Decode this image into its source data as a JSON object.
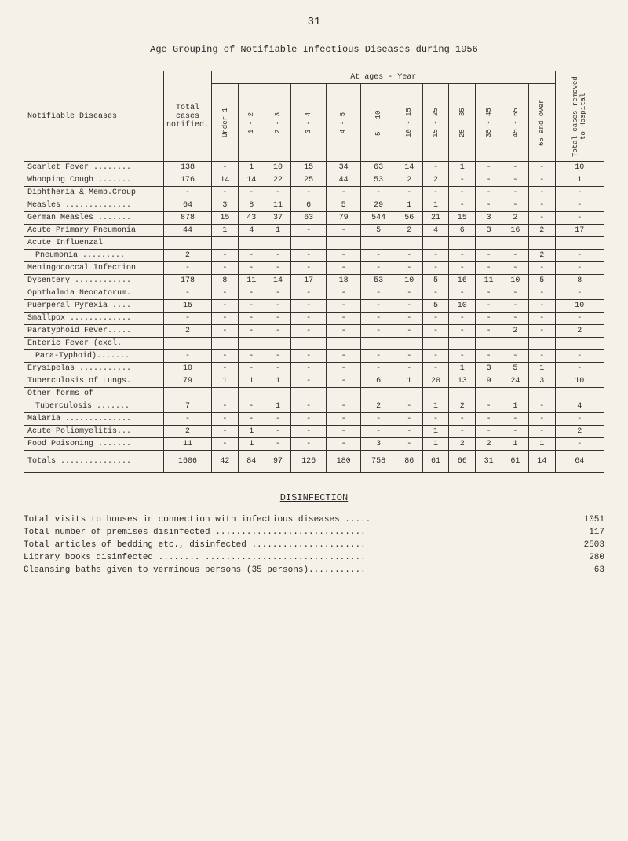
{
  "page_number": "31",
  "table_title": "Age Grouping of Notifiable Infectious Diseases during 1956",
  "headers": {
    "col_disease": "Notifiable Diseases",
    "col_total_cases": "Total cases notified.",
    "col_ages_span": "At ages - Year",
    "col_total_removed": "Total cases removed to Hospital",
    "age_cols": [
      "Under 1",
      "1 - 2",
      "2 - 3",
      "3 - 4",
      "4 - 5",
      "5 - 10",
      "10 - 15",
      "15 - 25",
      "25 - 35",
      "35 - 45",
      "45 - 65",
      "65 and over"
    ]
  },
  "rows": [
    {
      "name": "Scarlet Fever ........",
      "vals": [
        "138",
        "-",
        "1",
        "10",
        "15",
        "34",
        "63",
        "14",
        "-",
        "1",
        "-",
        "-",
        "-",
        "10"
      ]
    },
    {
      "name": "Whooping Cough .......",
      "vals": [
        "176",
        "14",
        "14",
        "22",
        "25",
        "44",
        "53",
        "2",
        "2",
        "-",
        "-",
        "-",
        "-",
        "1"
      ]
    },
    {
      "name": "Diphtheria & Memb.Croup",
      "vals": [
        "-",
        "-",
        "-",
        "-",
        "-",
        "-",
        "-",
        "-",
        "-",
        "-",
        "-",
        "-",
        "-",
        "-"
      ]
    },
    {
      "name": "Measles ..............",
      "vals": [
        "64",
        "3",
        "8",
        "11",
        "6",
        "5",
        "29",
        "1",
        "1",
        "-",
        "-",
        "-",
        "-",
        "-"
      ]
    },
    {
      "name": "German Measles .......",
      "vals": [
        "878",
        "15",
        "43",
        "37",
        "63",
        "79",
        "544",
        "56",
        "21",
        "15",
        "3",
        "2",
        "-",
        "-"
      ]
    },
    {
      "name": "Acute Primary Pneumonia",
      "vals": [
        "44",
        "1",
        "4",
        "1",
        "-",
        "-",
        "5",
        "2",
        "4",
        "6",
        "3",
        "16",
        "2",
        "17"
      ]
    },
    {
      "name": "Acute Influenzal",
      "vals": [
        "",
        "",
        "",
        "",
        "",
        "",
        "",
        "",
        "",
        "",
        "",
        "",
        "",
        ""
      ]
    },
    {
      "name": "Pneumonia .........",
      "indent": true,
      "vals": [
        "2",
        "-",
        "-",
        "-",
        "-",
        "-",
        "-",
        "-",
        "-",
        "-",
        "-",
        "-",
        "2",
        "-"
      ]
    },
    {
      "name": "Meningococcal Infection",
      "vals": [
        "-",
        "-",
        "-",
        "-",
        "-",
        "-",
        "-",
        "-",
        "-",
        "-",
        "-",
        "-",
        "-",
        "-"
      ]
    },
    {
      "name": "Dysentery ............",
      "vals": [
        "178",
        "8",
        "11",
        "14",
        "17",
        "18",
        "53",
        "10",
        "5",
        "16",
        "11",
        "10",
        "5",
        "8"
      ]
    },
    {
      "name": "Ophthalmia Neonatorum.",
      "vals": [
        "-",
        "-",
        "-",
        "-",
        "-",
        "-",
        "-",
        "-",
        "-",
        "-",
        "-",
        "-",
        "-",
        "-"
      ]
    },
    {
      "name": "Puerperal Pyrexia ....",
      "vals": [
        "15",
        "-",
        "-",
        "-",
        "-",
        "-",
        "-",
        "-",
        "5",
        "10",
        "-",
        "-",
        "-",
        "10"
      ]
    },
    {
      "name": "Smallpox .............",
      "vals": [
        "-",
        "-",
        "-",
        "-",
        "-",
        "-",
        "-",
        "-",
        "-",
        "-",
        "-",
        "-",
        "-",
        "-"
      ]
    },
    {
      "name": "Paratyphoid Fever.....",
      "vals": [
        "2",
        "-",
        "-",
        "-",
        "-",
        "-",
        "-",
        "-",
        "-",
        "-",
        "-",
        "2",
        "-",
        "2"
      ]
    },
    {
      "name": "Enteric Fever (excl.",
      "vals": [
        "",
        "",
        "",
        "",
        "",
        "",
        "",
        "",
        "",
        "",
        "",
        "",
        "",
        ""
      ]
    },
    {
      "name": "Para-Typhoid).......",
      "indent": true,
      "vals": [
        "-",
        "-",
        "-",
        "-",
        "-",
        "-",
        "-",
        "-",
        "-",
        "-",
        "-",
        "-",
        "-",
        "-"
      ]
    },
    {
      "name": "Erysipelas ...........",
      "vals": [
        "10",
        "-",
        "-",
        "-",
        "-",
        "-",
        "-",
        "-",
        "-",
        "1",
        "3",
        "5",
        "1",
        "-"
      ]
    },
    {
      "name": "Tuberculosis of Lungs.",
      "vals": [
        "79",
        "1",
        "1",
        "1",
        "-",
        "-",
        "6",
        "1",
        "20",
        "13",
        "9",
        "24",
        "3",
        "10"
      ]
    },
    {
      "name": "Other forms of",
      "vals": [
        "",
        "",
        "",
        "",
        "",
        "",
        "",
        "",
        "",
        "",
        "",
        "",
        "",
        ""
      ]
    },
    {
      "name": "Tuberculosis .......",
      "indent": true,
      "vals": [
        "7",
        "-",
        "-",
        "1",
        "-",
        "-",
        "2",
        "-",
        "1",
        "2",
        "-",
        "1",
        "-",
        "4"
      ]
    },
    {
      "name": "Malaria ..............",
      "vals": [
        "-",
        "-",
        "-",
        "-",
        "-",
        "-",
        "-",
        "-",
        "-",
        "-",
        "-",
        "-",
        "-",
        "-"
      ]
    },
    {
      "name": "Acute Poliomyelitis...",
      "vals": [
        "2",
        "-",
        "1",
        "-",
        "-",
        "-",
        "-",
        "-",
        "1",
        "-",
        "-",
        "-",
        "-",
        "2"
      ]
    },
    {
      "name": "Food Poisoning .......",
      "vals": [
        "11",
        "-",
        "1",
        "-",
        "-",
        "-",
        "3",
        "-",
        "1",
        "2",
        "2",
        "1",
        "1",
        "-"
      ]
    }
  ],
  "totals": {
    "name": "Totals ...............",
    "vals": [
      "1606",
      "42",
      "84",
      "97",
      "126",
      "180",
      "758",
      "86",
      "61",
      "66",
      "31",
      "61",
      "14",
      "64"
    ]
  },
  "disinfection": {
    "title": "DISINFECTION",
    "items": [
      {
        "label": "Total visits to houses in connection with infectious diseases .....",
        "value": "1051"
      },
      {
        "label": "Total number of premises disinfected .............................",
        "value": "117"
      },
      {
        "label": "Total articles of bedding etc., disinfected ......................",
        "value": "2503"
      },
      {
        "label": "Library books disinfected ........ ...............................",
        "value": "280"
      },
      {
        "label": "Cleansing baths given to verminous persons (35 persons)...........",
        "value": "63"
      }
    ]
  }
}
